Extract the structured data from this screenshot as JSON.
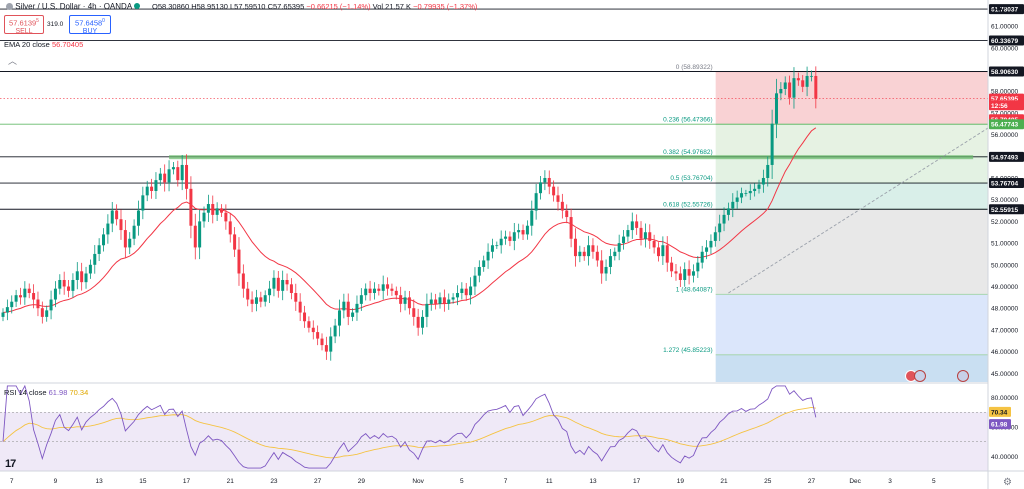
{
  "header": {
    "symbol": "Silver / U.S. Dollar · 4h · OANDA",
    "open": "O58.30860",
    "high": "H58.95130",
    "low": "L57.59510",
    "close": "C57.65395",
    "change": "−0.66215 (−1.14%)",
    "volume": "Vol 21.57 K",
    "volume_change": "−0.79935 (−1.37%)",
    "sell_price": "57.6139",
    "sell_sup": "5",
    "sell_label": "SELL",
    "buy_price": "57.6458",
    "buy_sup": "0",
    "buy_label": "BUY",
    "spread": "319.0",
    "currency": "USD"
  },
  "ema_legend": {
    "label": "EMA 20 close",
    "value": "56.70405"
  },
  "rsi_legend": {
    "label": "RSI 14 close",
    "value1": "61.98",
    "value2": "70.34"
  },
  "colors": {
    "up": "#089981",
    "down": "#f23645",
    "ema": "#f23645",
    "rsi": "#7e57c2",
    "rsi_ma": "#f5c343",
    "fib_line": "#089981",
    "accent": "#2962ff"
  },
  "price_axis": {
    "ticks": [
      "61.00000",
      "60.00000",
      "59.00000",
      "58.00000",
      "57.00000",
      "56.00000",
      "55.00000",
      "54.00000",
      "53.00000",
      "52.00000",
      "51.00000",
      "50.00000",
      "49.00000",
      "48.00000",
      "47.00000",
      "46.00000",
      "45.00000"
    ],
    "tick_values": [
      61,
      60,
      59,
      58,
      57,
      56,
      55,
      54,
      53,
      52,
      51,
      50,
      49,
      48,
      47,
      46,
      45
    ],
    "labels": [
      {
        "text": "61.78037",
        "value": 61.78037,
        "style": "black"
      },
      {
        "text": "60.33679",
        "value": 60.33679,
        "style": "black"
      },
      {
        "text": "58.90630",
        "value": 58.9063,
        "style": "black"
      },
      {
        "text": "57.65395",
        "value": 57.65395,
        "style": "red"
      },
      {
        "text": "12:56",
        "value": 57.35,
        "style": "red"
      },
      {
        "text": "56.70405",
        "value": 56.70405,
        "style": "red"
      },
      {
        "text": "56.47743",
        "value": 56.47743,
        "style": "green"
      },
      {
        "text": "54.97493",
        "value": 54.97493,
        "style": "black"
      },
      {
        "text": "53.76704",
        "value": 53.76704,
        "style": "black"
      },
      {
        "text": "52.55915",
        "value": 52.55915,
        "style": "black"
      }
    ]
  },
  "rsi_axis": {
    "ticks": [
      "80.00000",
      "60.00000",
      "40.00000"
    ],
    "tick_values": [
      80,
      60,
      40
    ],
    "labels": [
      {
        "text": "70.34",
        "value": 70.34,
        "style": "yellow"
      },
      {
        "text": "61.98",
        "value": 61.98,
        "style": "purple"
      }
    ]
  },
  "time_axis": {
    "labels": [
      {
        "text": "7",
        "i": 2
      },
      {
        "text": "9",
        "i": 12
      },
      {
        "text": "13",
        "i": 22
      },
      {
        "text": "15",
        "i": 32
      },
      {
        "text": "17",
        "i": 42
      },
      {
        "text": "21",
        "i": 52
      },
      {
        "text": "23",
        "i": 62
      },
      {
        "text": "27",
        "i": 72
      },
      {
        "text": "29",
        "i": 82
      },
      {
        "text": "Nov",
        "i": 95
      },
      {
        "text": "5",
        "i": 105
      },
      {
        "text": "7",
        "i": 115
      },
      {
        "text": "11",
        "i": 125
      },
      {
        "text": "13",
        "i": 135
      },
      {
        "text": "17",
        "i": 145
      },
      {
        "text": "19",
        "i": 155
      },
      {
        "text": "21",
        "i": 165
      },
      {
        "text": "25",
        "i": 175
      },
      {
        "text": "27",
        "i": 185
      },
      {
        "text": "Dec",
        "i": 195
      },
      {
        "text": "3",
        "i": 203
      },
      {
        "text": "5",
        "i": 213
      }
    ]
  },
  "horizontal_levels": [
    {
      "value": 61.78037,
      "from_x": 0
    },
    {
      "value": 60.33679,
      "from_x": 0
    },
    {
      "value": 58.9063,
      "from_x": 0
    },
    {
      "value": 56.47743,
      "from_x": 0,
      "color": "green"
    },
    {
      "value": 54.97493,
      "from_x": 0
    },
    {
      "value": 53.76704,
      "from_x": 0
    },
    {
      "value": 52.55915,
      "from_x": 0
    }
  ],
  "fibonacci": {
    "levels": [
      {
        "label": "0 (58.89322)",
        "value": 58.89322,
        "fill": "#f9d2d4"
      },
      {
        "label": "0.236 (56.47366)",
        "value": 56.47366,
        "fill": "#e6f2e3"
      },
      {
        "label": "0.382 (54.97682)",
        "value": 54.97682,
        "fill": "#e3f2e3"
      },
      {
        "label": "0.5 (53.76704)",
        "value": 53.76704,
        "fill": "#d9efe9"
      },
      {
        "label": "0.618 (52.55726)",
        "value": 52.55726,
        "fill": "#e8e8e8"
      },
      {
        "label": "1 (48.64087)",
        "value": 48.64087,
        "fill": "#dbe6fb"
      },
      {
        "label": "1.272 (45.85223)",
        "value": 45.85223,
        "fill": "#c9dff2"
      }
    ],
    "start_bar": 164
  },
  "chart_data": {
    "type": "candlestick",
    "title": "Silver / U.S. Dollar · 4h · OANDA",
    "ylim": [
      44.6,
      62.2
    ],
    "series": [
      {
        "name": "Silver / U.S. Dollar",
        "closes": [
          47.8,
          48.05,
          48.3,
          48.6,
          48.5,
          48.9,
          48.7,
          48.4,
          48.0,
          47.6,
          47.9,
          48.4,
          48.9,
          49.3,
          49.0,
          48.8,
          49.3,
          49.7,
          49.2,
          49.6,
          50.0,
          50.5,
          50.9,
          51.4,
          51.9,
          52.5,
          52.1,
          51.6,
          50.8,
          51.2,
          51.8,
          52.5,
          53.2,
          53.6,
          53.4,
          53.9,
          54.2,
          53.8,
          54.4,
          54.5,
          53.9,
          54.6,
          53.5,
          51.8,
          50.8,
          52.0,
          52.4,
          52.8,
          52.3,
          52.6,
          52.4,
          52.0,
          51.4,
          50.7,
          49.6,
          48.9,
          48.4,
          48.2,
          48.5,
          48.3,
          48.6,
          48.9,
          49.4,
          48.8,
          49.3,
          49.1,
          48.7,
          48.3,
          47.8,
          47.4,
          47.1,
          46.9,
          46.6,
          46.3,
          46.0,
          46.7,
          47.2,
          47.9,
          48.3,
          47.6,
          47.8,
          48.2,
          48.6,
          48.9,
          48.7,
          48.9,
          48.8,
          49.1,
          48.9,
          48.8,
          48.6,
          48.2,
          48.5,
          48.0,
          47.6,
          47.1,
          47.6,
          48.2,
          48.4,
          48.2,
          48.5,
          48.2,
          48.4,
          48.5,
          48.7,
          48.9,
          48.6,
          49.0,
          49.5,
          49.9,
          50.2,
          50.6,
          50.9,
          50.9,
          51.2,
          51.3,
          51.1,
          51.5,
          51.6,
          51.4,
          51.8,
          52.5,
          53.3,
          53.8,
          54.0,
          53.6,
          53.2,
          52.9,
          52.5,
          52.2,
          51.2,
          50.4,
          50.6,
          50.4,
          50.9,
          50.6,
          50.2,
          49.6,
          49.9,
          50.4,
          50.6,
          51.0,
          51.3,
          51.6,
          52.0,
          51.7,
          51.2,
          51.5,
          51.1,
          50.8,
          50.4,
          50.9,
          50.1,
          49.7,
          49.6,
          49.3,
          49.8,
          49.5,
          49.7,
          50.1,
          50.6,
          50.8,
          51.1,
          51.5,
          51.9,
          52.3,
          52.6,
          52.9,
          53.1,
          53.3,
          53.3,
          53.4,
          53.5,
          53.7,
          54.0,
          54.6,
          56.5,
          57.9,
          58.1,
          58.4,
          57.7,
          58.6,
          58.5,
          58.2,
          58.7,
          58.7,
          57.65
        ]
      },
      {
        "name": "EMA 20 close",
        "values": []
      },
      {
        "name": "RSI 14 close",
        "values": []
      }
    ]
  }
}
